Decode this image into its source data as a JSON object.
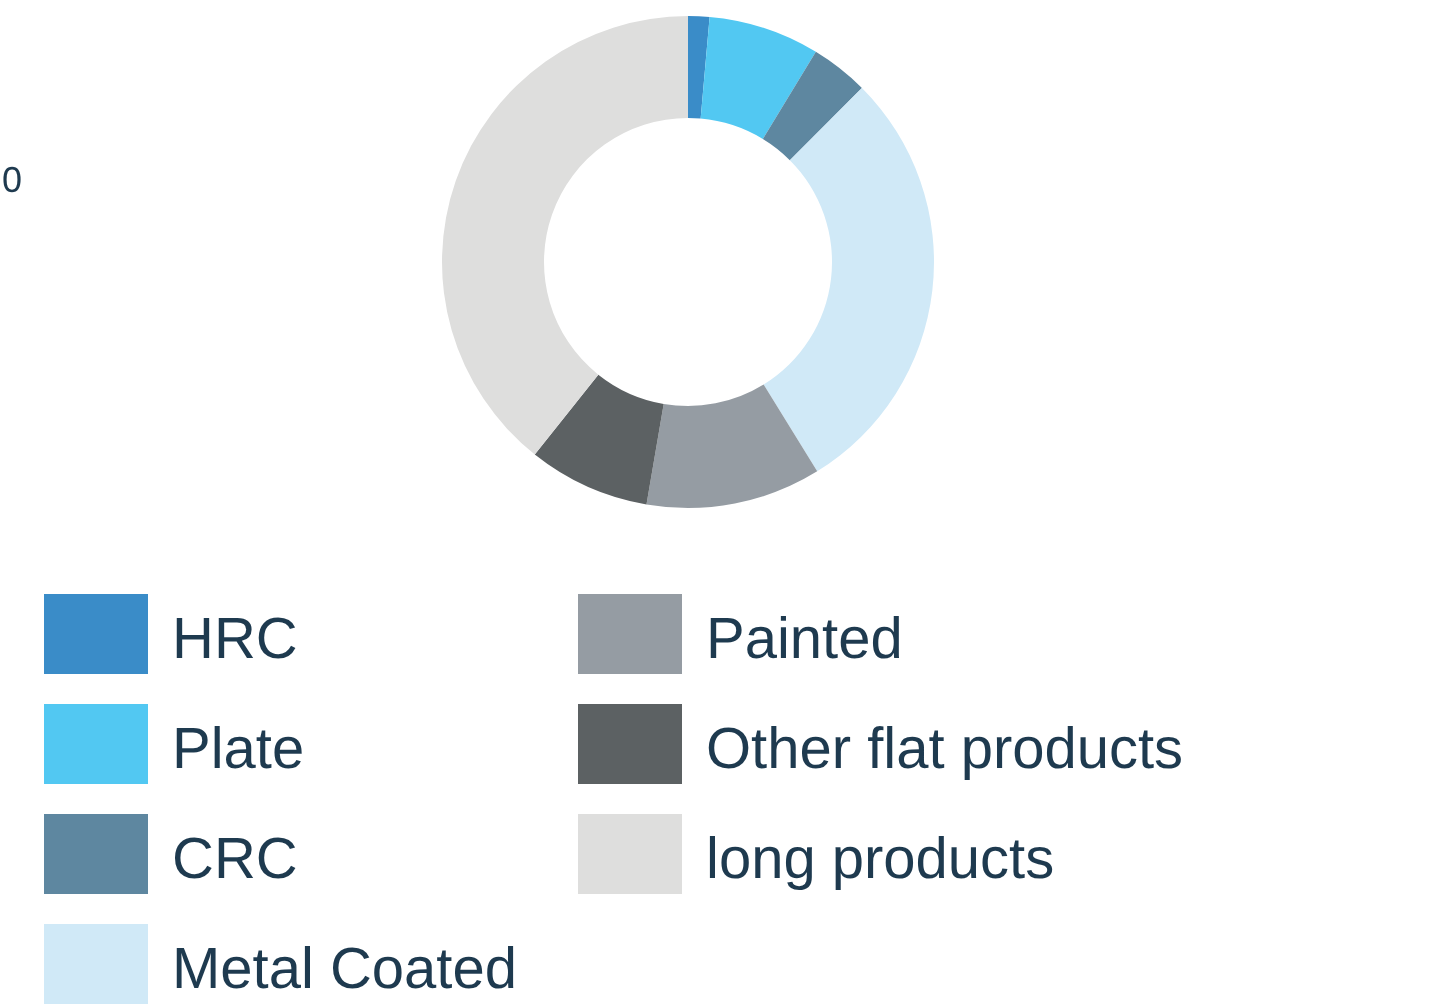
{
  "chart_data": {
    "type": "donut",
    "categories": [
      "HRC",
      "Plate",
      "CRC",
      "Metal Coated",
      "Painted",
      "Other flat products",
      "long products"
    ],
    "values": [
      1.4,
      7.3,
      3.8,
      28.7,
      11.5,
      8.0,
      39.3
    ],
    "colors": [
      "#3a8cc8",
      "#52c8f2",
      "#5e87a0",
      "#d0e9f7",
      "#959ca3",
      "#5c6163",
      "#dededd"
    ],
    "legend": "bottom",
    "annotations": [
      "0"
    ]
  }
}
